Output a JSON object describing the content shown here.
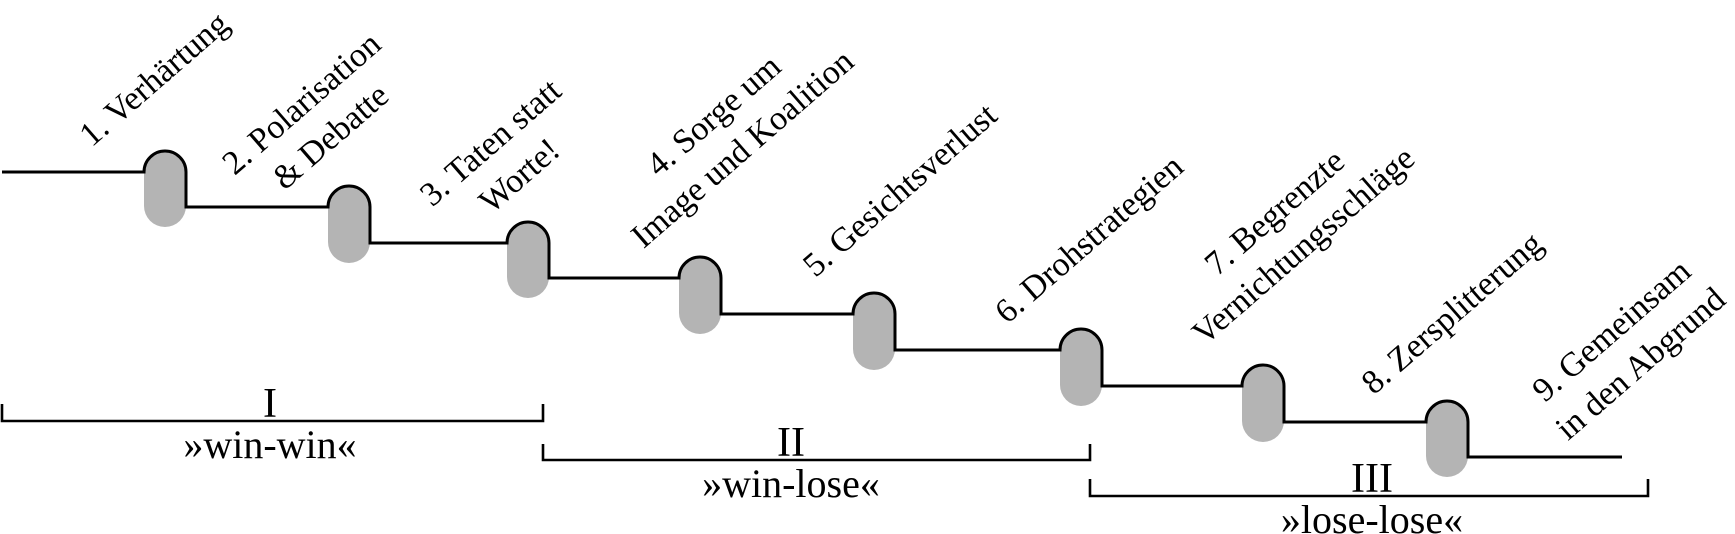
{
  "diagram": {
    "model": "conflict-escalation-staircase",
    "stages": [
      {
        "id": 1,
        "lines": [
          "1. Verhärtung"
        ]
      },
      {
        "id": 2,
        "lines": [
          "2. Polarisation",
          "& Debatte"
        ]
      },
      {
        "id": 3,
        "lines": [
          "3. Taten statt",
          "Worte!"
        ]
      },
      {
        "id": 4,
        "lines": [
          "4. Sorge um",
          "Image und Koalition"
        ]
      },
      {
        "id": 5,
        "lines": [
          "5. Gesichtsverlust"
        ]
      },
      {
        "id": 6,
        "lines": [
          "6. Drohstrategien"
        ]
      },
      {
        "id": 7,
        "lines": [
          "7. Begrenzte",
          "Vernichtungsschläge"
        ]
      },
      {
        "id": 8,
        "lines": [
          "8. Zersplitterung"
        ]
      },
      {
        "id": 9,
        "lines": [
          "9. Gemeinsam",
          "in den Abgrund"
        ]
      }
    ],
    "phases": [
      {
        "numeral": "I",
        "label": "»win-win«"
      },
      {
        "numeral": "II",
        "label": "»win-lose«"
      },
      {
        "numeral": "III",
        "label": "»lose-lose«"
      }
    ],
    "colors": {
      "capsule_fill": "#b4b4b4",
      "line": "#000000",
      "text": "#000000",
      "background": "#ffffff"
    }
  }
}
